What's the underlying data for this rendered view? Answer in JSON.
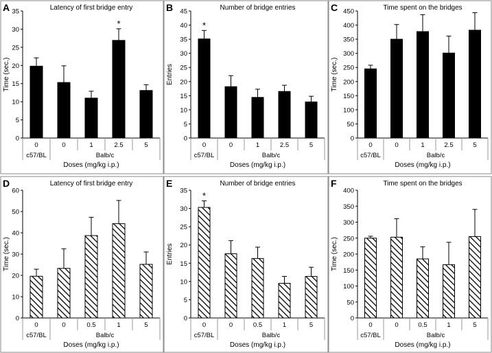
{
  "colors": {
    "bar_fill": "#000000",
    "hatch": "#000000",
    "frame": "#8a8a8a",
    "background": "#ffffff"
  },
  "chart_data": [
    {
      "letter": "A",
      "type": "bar",
      "fill": "solid",
      "title": "Latency of first bridge entry",
      "ylabel": "Time (sec.)",
      "xlabel": "Doses (mg/kg i.p.)",
      "ylim": [
        0,
        35
      ],
      "yticks": [
        0,
        5,
        10,
        15,
        20,
        25,
        30,
        35
      ],
      "categories": [
        "0",
        "0",
        "1",
        "2.5",
        "5"
      ],
      "groups": [
        "c57/BL",
        "Balb/c"
      ],
      "values": [
        19.8,
        15.3,
        11.0,
        26.9,
        13.1
      ],
      "errors": [
        2.3,
        4.6,
        1.9,
        3.2,
        1.6
      ],
      "significant": [
        false,
        false,
        false,
        true,
        false
      ],
      "star": "*"
    },
    {
      "letter": "B",
      "type": "bar",
      "fill": "solid",
      "title": "Number of bridge entries",
      "ylabel": "Entries",
      "xlabel": "Doses (mg/kg i.p.)",
      "ylim": [
        0,
        45
      ],
      "yticks": [
        0,
        5,
        10,
        15,
        20,
        25,
        30,
        35,
        40,
        45
      ],
      "categories": [
        "0",
        "0",
        "1",
        "2.5",
        "5"
      ],
      "groups": [
        "c57/BL",
        "Balb/c"
      ],
      "values": [
        35.1,
        18.2,
        14.4,
        16.5,
        12.8
      ],
      "errors": [
        3.0,
        3.9,
        2.9,
        2.2,
        2.0
      ],
      "significant": [
        true,
        false,
        false,
        false,
        false
      ],
      "star": "*"
    },
    {
      "letter": "C",
      "type": "bar",
      "fill": "solid",
      "title": "Time spent on the bridges",
      "ylabel": "Time (sec.)",
      "xlabel": "Doses (mg/kg i.p.)",
      "ylim": [
        0,
        450
      ],
      "yticks": [
        0,
        50,
        100,
        150,
        200,
        250,
        300,
        350,
        400,
        450
      ],
      "categories": [
        "0",
        "0",
        "1",
        "2.5",
        "5"
      ],
      "groups": [
        "c57/BL",
        "Balb/c"
      ],
      "values": [
        245,
        350,
        377,
        301,
        382
      ],
      "errors": [
        13,
        52,
        60,
        60,
        62
      ],
      "significant": [
        false,
        false,
        false,
        false,
        false
      ],
      "star": "*"
    },
    {
      "letter": "D",
      "type": "bar",
      "fill": "hatched",
      "title": "Latency of first bridge entry",
      "ylabel": "Time (sec.)",
      "xlabel": "Doses (mg/kg i.p.)",
      "ylim": [
        0,
        60
      ],
      "yticks": [
        0,
        10,
        20,
        30,
        40,
        50,
        60
      ],
      "categories": [
        "0",
        "0",
        "0.5",
        "1",
        "5"
      ],
      "groups": [
        "c57/BL",
        "Balb/c"
      ],
      "values": [
        19.6,
        23.3,
        38.7,
        44.3,
        25.2
      ],
      "errors": [
        3.3,
        9.2,
        8.6,
        10.9,
        5.8
      ],
      "significant": [
        false,
        false,
        false,
        false,
        false
      ],
      "star": "*"
    },
    {
      "letter": "E",
      "type": "bar",
      "fill": "hatched",
      "title": "Number of bridge entries",
      "ylabel": "Entries",
      "xlabel": "Doses (mg/kg i.p.)",
      "ylim": [
        0,
        35
      ],
      "yticks": [
        0,
        5,
        10,
        15,
        20,
        25,
        30,
        35
      ],
      "categories": [
        "0",
        "0",
        "0.5",
        "1",
        "5"
      ],
      "groups": [
        "c57/BL",
        "Balb/c"
      ],
      "values": [
        30.3,
        17.6,
        16.3,
        9.5,
        11.4
      ],
      "errors": [
        1.8,
        3.6,
        3.1,
        1.9,
        2.5
      ],
      "significant": [
        true,
        false,
        false,
        false,
        false
      ],
      "star": "*"
    },
    {
      "letter": "F",
      "type": "bar",
      "fill": "hatched",
      "title": "Time spent on the bridges",
      "ylabel": "Time (sec.)",
      "xlabel": "Doses (mg/kg i.p.)",
      "ylim": [
        0,
        400
      ],
      "yticks": [
        0,
        50,
        100,
        150,
        200,
        250,
        300,
        350,
        400
      ],
      "categories": [
        "0",
        "0",
        "0.5",
        "1",
        "5"
      ],
      "groups": [
        "c57/BL",
        "Balb/c"
      ],
      "values": [
        250,
        253,
        185,
        167,
        255
      ],
      "errors": [
        6,
        58,
        38,
        70,
        85
      ],
      "significant": [
        false,
        false,
        false,
        false,
        false
      ],
      "star": "*"
    }
  ]
}
